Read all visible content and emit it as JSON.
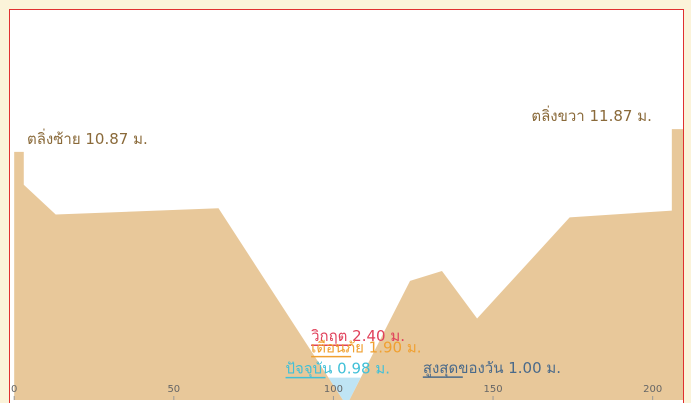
{
  "chart_data": {
    "type": "area",
    "x": [
      0,
      3,
      3,
      13,
      64,
      103,
      105,
      124,
      134,
      145,
      174,
      206,
      206,
      209.5
    ],
    "values": [
      10.87,
      10.87,
      9.43,
      8.13,
      8.4,
      0,
      0,
      5.22,
      5.65,
      3.57,
      8.0,
      8.3,
      11.87,
      11.87
    ],
    "color": "#e8c89a",
    "xlim": [
      -1,
      209.5
    ],
    "ylim": [
      0,
      17
    ],
    "xticks": [
      0,
      50,
      100,
      150,
      200
    ],
    "banks": [
      {
        "label": "ตลิ่งซ้าย 10.87 ม.",
        "value": 10.87,
        "x": 4,
        "color": "#8a6a3a"
      },
      {
        "label": "ตลิ่งขวา 11.87 ม.",
        "value": 11.87,
        "x": 162,
        "color": "#8a6a3a"
      }
    ],
    "levels": [
      {
        "label": "วิกฤต 2.40 ม.",
        "value": 2.4,
        "x": 93,
        "color": "#e0405a"
      },
      {
        "label": "เตือนภัย 1.90 ม.",
        "value": 1.9,
        "x": 93,
        "color": "#f0a030"
      },
      {
        "label": "ปัจจุบัน 0.98 ม.",
        "value": 0.98,
        "x": 85,
        "color": "#40c0d8"
      },
      {
        "label": "สูงสุดของวัน 1.00 ม.",
        "value": 1.0,
        "x": 128,
        "color": "#4a6a8a"
      }
    ]
  }
}
